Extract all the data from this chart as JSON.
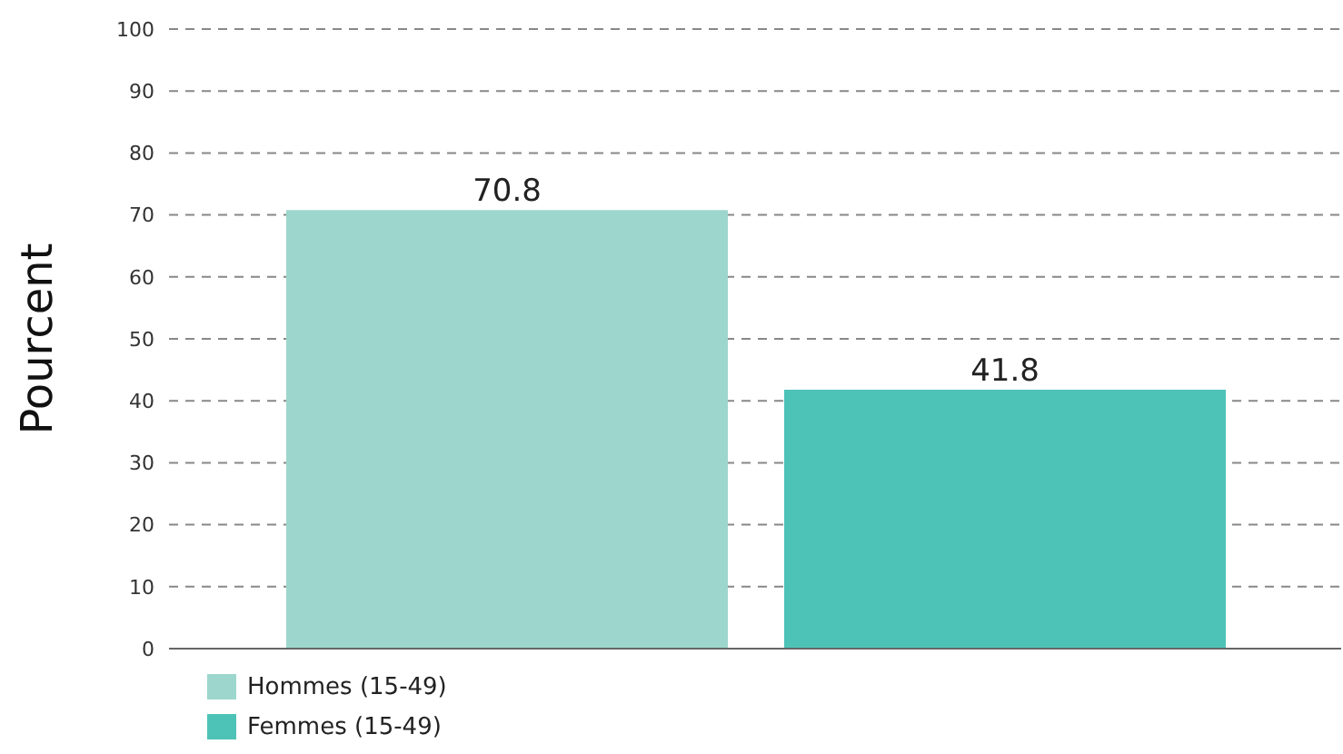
{
  "chart_data": {
    "type": "bar",
    "ylabel": "Pourcent",
    "categories": [
      null
    ],
    "series": [
      {
        "name": "Hommes (15-49)",
        "color": "#9dd6cc",
        "values": [
          70.8
        ]
      },
      {
        "name": "Femmes (15-49)",
        "color": "#4dc3b8",
        "values": [
          41.8
        ]
      }
    ],
    "ylim": [
      0,
      100
    ],
    "yticks": [
      0,
      10,
      20,
      30,
      40,
      50,
      60,
      70,
      80,
      90,
      100
    ],
    "grid": "y",
    "legend": "bottom left",
    "data_labels": true
  }
}
